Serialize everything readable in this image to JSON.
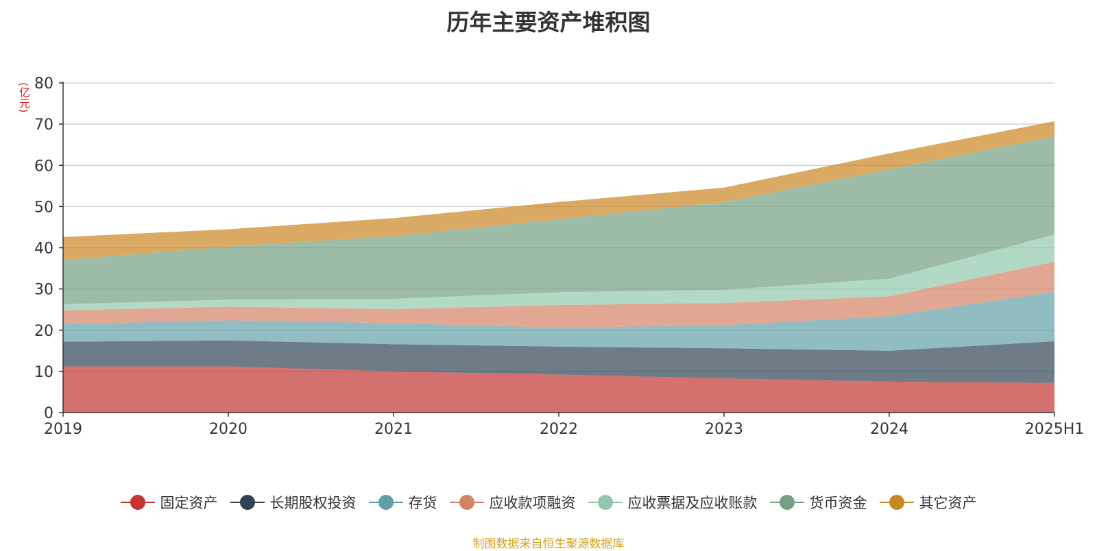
{
  "chart_data": {
    "type": "area",
    "title": "历年主要资产堆积图",
    "unit_label": "(亿元)",
    "categories": [
      "2019",
      "2020",
      "2021",
      "2022",
      "2023",
      "2024",
      "2025H1"
    ],
    "ylim": [
      0,
      80
    ],
    "yticks": [
      0,
      10,
      20,
      30,
      40,
      50,
      60,
      70,
      80
    ],
    "grid": true,
    "stacked": true,
    "legend_position": "bottom",
    "series": [
      {
        "name": "固定资产",
        "color": "#c23531",
        "values": [
          11.2,
          11.2,
          10.0,
          9.2,
          8.3,
          7.5,
          7.2
        ]
      },
      {
        "name": "长期股权投资",
        "color": "#2f4554",
        "values": [
          6.0,
          6.3,
          6.6,
          6.8,
          7.3,
          7.5,
          10.1
        ]
      },
      {
        "name": "存货",
        "color": "#61a0a8",
        "values": [
          4.3,
          4.9,
          5.1,
          4.6,
          5.6,
          8.4,
          12.0
        ]
      },
      {
        "name": "应收款项融资",
        "color": "#d48265",
        "values": [
          3.3,
          3.3,
          3.4,
          5.5,
          5.4,
          4.8,
          7.3
        ]
      },
      {
        "name": "应收票据及应收账款",
        "color": "#91c7ae",
        "values": [
          1.5,
          1.7,
          2.5,
          3.1,
          3.2,
          4.3,
          6.6
        ]
      },
      {
        "name": "货币资金",
        "color": "#749f83",
        "values": [
          10.7,
          12.9,
          15.2,
          17.7,
          21.3,
          26.5,
          23.8
        ]
      },
      {
        "name": "其它资产",
        "color": "#ca8622",
        "values": [
          5.6,
          4.2,
          4.4,
          4.2,
          3.5,
          3.9,
          3.7
        ]
      }
    ]
  },
  "footer": {
    "source": "制图数据来自恒生聚源数据库"
  }
}
